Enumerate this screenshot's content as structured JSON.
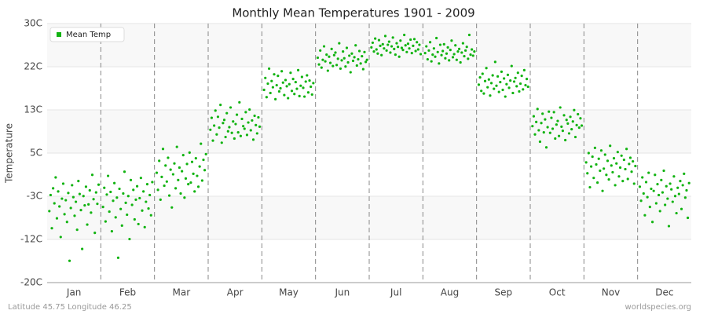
{
  "chart_data": {
    "type": "scatter",
    "title": "Monthly Mean Temperatures 1901 - 2009",
    "ylabel": "Temperature",
    "categories": [
      "Jan",
      "Feb",
      "Mar",
      "Apr",
      "May",
      "Jun",
      "Jul",
      "Aug",
      "Sep",
      "Oct",
      "Nov",
      "Dec"
    ],
    "series": [
      {
        "name": "Mean Temp",
        "color": "#11b311",
        "values": [
          [
            -6.2,
            -3.1,
            -9.5,
            -1.8,
            -4.7,
            0.3,
            -7.6,
            -2.4,
            -5.3,
            -11.2,
            -3.8,
            -0.9,
            -6.8,
            -4.1,
            -8.3,
            -2.7,
            -15.8,
            -5.6,
            -1.2,
            -3.5,
            -7.1,
            -4.4,
            -9.8,
            -0.4,
            -2.9,
            -6.0,
            -13.5,
            -3.3,
            -5.1,
            -1.5,
            -8.8,
            -4.9,
            -2.2,
            -6.5,
            0.8,
            -3.9,
            -10.4,
            -2.6,
            -4.8,
            -1.1
          ],
          [
            -5.4,
            -1.7,
            -8.2,
            -3.0,
            0.6,
            -6.3,
            -2.5,
            -10.1,
            -4.2,
            -0.8,
            -7.4,
            -3.6,
            -15.2,
            -1.9,
            -5.8,
            -9.0,
            -2.8,
            1.4,
            -4.6,
            -6.9,
            -3.3,
            -11.6,
            -0.2,
            -5.0,
            -2.1,
            -7.8,
            -4.0,
            -1.4,
            -8.7,
            -3.7,
            0.2,
            -6.1,
            -2.4,
            -9.3,
            -4.4,
            -1.0,
            -5.7,
            -3.1,
            -7.0,
            -0.6
          ],
          [
            1.2,
            -2.1,
            3.5,
            -4.0,
            0.4,
            5.8,
            -1.3,
            2.6,
            -0.5,
            4.1,
            -3.2,
            1.8,
            -5.5,
            0.9,
            3.0,
            -1.8,
            6.2,
            -0.2,
            2.2,
            -2.8,
            1.5,
            4.6,
            -3.6,
            0.1,
            2.9,
            -1.0,
            5.1,
            -0.7,
            3.3,
            1.0,
            -2.4,
            4.0,
            0.6,
            -1.5,
            2.4,
            6.8,
            -0.3,
            3.7,
            1.7,
            4.8
          ],
          [
            9.5,
            11.8,
            7.4,
            10.3,
            13.2,
            8.6,
            12.0,
            9.9,
            14.3,
            7.0,
            10.8,
            11.4,
            8.1,
            12.7,
            9.2,
            10.0,
            13.8,
            8.9,
            11.1,
            7.8,
            10.6,
            12.4,
            9.0,
            14.8,
            8.3,
            11.6,
            10.2,
            9.7,
            12.9,
            8.5,
            10.9,
            13.4,
            9.4,
            11.3,
            7.6,
            12.2,
            10.4,
            8.8,
            11.9,
            10.1
          ],
          [
            17.2,
            19.5,
            15.8,
            18.4,
            21.3,
            16.6,
            18.9,
            17.7,
            20.2,
            15.4,
            18.1,
            19.9,
            16.9,
            17.5,
            20.8,
            18.6,
            16.2,
            19.1,
            17.9,
            15.6,
            18.3,
            20.5,
            17.0,
            19.3,
            16.4,
            18.7,
            17.4,
            21.0,
            16.0,
            18.0,
            19.7,
            17.6,
            15.9,
            18.8,
            20.0,
            16.7,
            19.0,
            17.8,
            16.3,
            18.5
          ],
          [
            23.4,
            22.1,
            24.8,
            21.5,
            23.0,
            25.6,
            22.7,
            24.0,
            20.9,
            23.6,
            22.4,
            25.1,
            21.8,
            23.9,
            24.4,
            22.0,
            23.2,
            26.2,
            21.3,
            22.9,
            24.6,
            23.3,
            21.7,
            25.3,
            22.5,
            23.8,
            20.6,
            24.2,
            22.8,
            23.5,
            25.8,
            21.9,
            23.1,
            24.7,
            22.3,
            23.7,
            21.2,
            24.5,
            22.6,
            23.0
          ],
          [
            25.4,
            26.3,
            24.6,
            27.1,
            25.0,
            24.2,
            26.8,
            25.7,
            23.9,
            26.0,
            25.2,
            27.6,
            24.8,
            25.9,
            26.5,
            24.4,
            25.6,
            27.3,
            25.1,
            24.0,
            26.2,
            25.5,
            23.6,
            26.7,
            25.3,
            24.9,
            27.8,
            25.8,
            24.5,
            26.1,
            25.2,
            26.9,
            24.3,
            25.7,
            27.0,
            24.7,
            26.4,
            25.0,
            25.9,
            24.1
          ],
          [
            24.3,
            25.6,
            23.1,
            24.8,
            26.4,
            22.7,
            24.0,
            25.2,
            23.6,
            27.2,
            24.5,
            22.3,
            25.9,
            23.9,
            24.7,
            26.0,
            23.3,
            24.2,
            25.4,
            22.9,
            24.9,
            26.7,
            23.5,
            24.1,
            25.8,
            23.0,
            24.6,
            25.1,
            22.5,
            24.4,
            26.2,
            23.7,
            24.8,
            25.5,
            23.2,
            27.8,
            24.0,
            25.0,
            23.8,
            24.6
          ],
          [
            18.2,
            19.6,
            17.0,
            20.3,
            16.5,
            18.9,
            21.4,
            17.7,
            19.2,
            16.1,
            18.5,
            20.0,
            17.4,
            22.6,
            18.0,
            19.8,
            16.8,
            18.7,
            20.7,
            17.2,
            19.4,
            15.9,
            18.3,
            20.1,
            17.6,
            19.0,
            21.8,
            16.6,
            18.8,
            19.5,
            17.9,
            20.5,
            16.9,
            18.4,
            19.9,
            17.3,
            21.0,
            18.1,
            19.3,
            17.8
          ],
          [
            10.2,
            12.1,
            8.6,
            11.0,
            13.5,
            9.4,
            7.2,
            10.8,
            12.6,
            9.0,
            11.5,
            6.1,
            10.0,
            13.0,
            8.9,
            11.8,
            9.7,
            12.9,
            7.8,
            10.5,
            11.2,
            8.3,
            13.8,
            10.1,
            9.3,
            12.3,
            7.5,
            11.4,
            10.7,
            8.8,
            12.0,
            9.6,
            11.1,
            13.3,
            8.1,
            10.4,
            12.5,
            9.9,
            11.7,
            10.3
          ],
          [
            3.2,
            1.1,
            5.0,
            -1.6,
            2.4,
            4.3,
            0.2,
            6.0,
            2.8,
            -0.7,
            3.9,
            1.6,
            5.5,
            -2.3,
            2.0,
            4.7,
            0.8,
            3.5,
            -0.1,
            6.4,
            2.6,
            1.3,
            4.0,
            -1.2,
            3.0,
            5.2,
            0.5,
            2.2,
            4.5,
            -0.4,
            3.7,
            1.9,
            5.8,
            0.0,
            2.9,
            4.1,
            1.4,
            3.4,
            -0.9,
            2.5
          ],
          [
            -1.5,
            -4.2,
            0.3,
            -2.8,
            -7.0,
            -0.6,
            -3.5,
            1.2,
            -5.4,
            -1.9,
            -8.3,
            -2.3,
            0.8,
            -4.7,
            -1.0,
            -3.1,
            -6.2,
            -0.2,
            -2.6,
            1.6,
            -5.0,
            -1.4,
            -3.8,
            -9.1,
            -0.9,
            -2.0,
            -4.4,
            0.5,
            -3.3,
            -6.6,
            -1.7,
            -2.9,
            -0.4,
            -5.8,
            -1.2,
            1.0,
            -3.6,
            -2.2,
            -7.5,
            -0.8
          ]
        ]
      }
    ],
    "ylim": [
      -20,
      30
    ],
    "yticks": [
      {
        "value": -20,
        "label": "-20C"
      },
      {
        "value": -11.67,
        "label": "-12C"
      },
      {
        "value": -3.33,
        "label": "-3C"
      },
      {
        "value": 5,
        "label": "5C"
      },
      {
        "value": 13.33,
        "label": "13C"
      },
      {
        "value": 21.67,
        "label": "22C"
      },
      {
        "value": 30,
        "label": "30C"
      }
    ],
    "legend": "top-left"
  },
  "footer": {
    "left": "Latitude 45.75 Longitude 46.25",
    "right": "worldspecies.org"
  }
}
